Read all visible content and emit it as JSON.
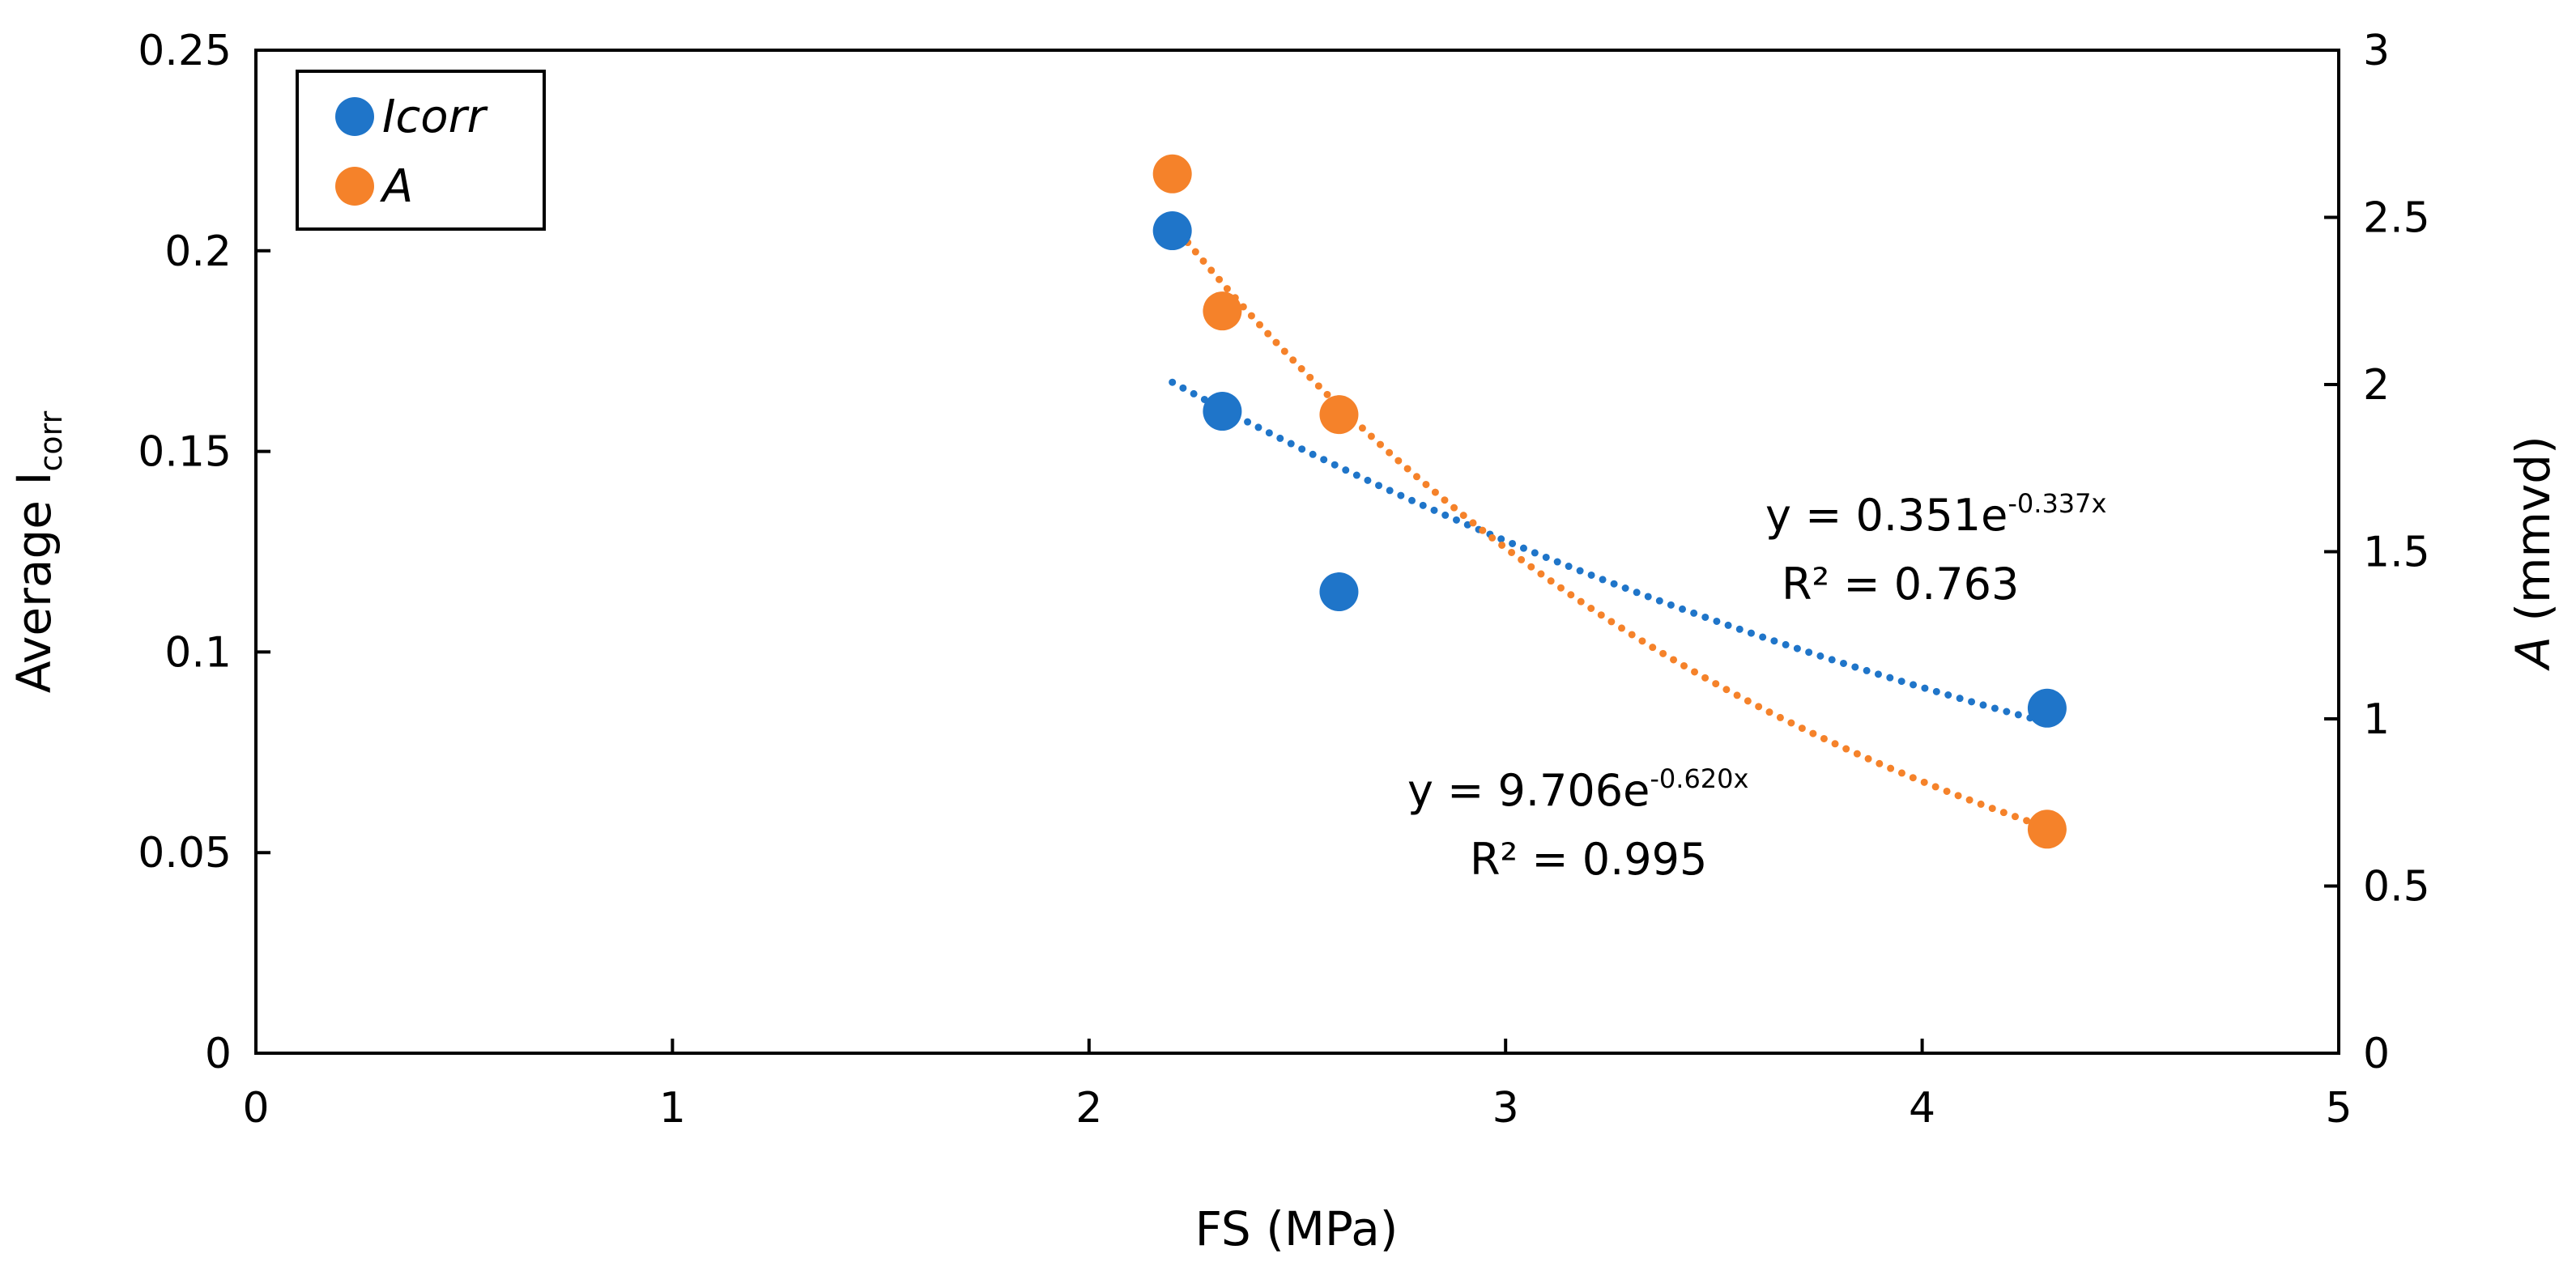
{
  "chart_data": {
    "type": "scatter",
    "title": "",
    "xlabel": "FS (MPa)",
    "ylabel": "Average I",
    "ylabel_sub": "corr",
    "y2label_italic": "A",
    "y2label_rest": " (mmvd)",
    "xlim": [
      0,
      5
    ],
    "ylim": [
      0,
      0.25
    ],
    "y2lim": [
      0,
      3
    ],
    "x_ticks": [
      0,
      1,
      2,
      3,
      4,
      5
    ],
    "x_tick_labels": [
      "0",
      "1",
      "2",
      "3",
      "4",
      "5"
    ],
    "y_ticks": [
      0,
      0.05,
      0.1,
      0.15,
      0.2,
      0.25
    ],
    "y_tick_labels": [
      "0",
      "0.05",
      "0.1",
      "0.15",
      "0.2",
      "0.25"
    ],
    "y2_ticks": [
      0,
      0.5,
      1,
      1.5,
      2,
      2.5,
      3
    ],
    "y2_tick_labels": [
      "0",
      "0.5",
      "1",
      "1.5",
      "2",
      "2.5",
      "3"
    ],
    "grid": false,
    "legend_position": "top-left",
    "series": [
      {
        "name": "Icorr",
        "axis": "left",
        "color": "#1f75c9",
        "x": [
          2.2,
          2.32,
          2.6,
          4.3
        ],
        "y": [
          0.205,
          0.16,
          0.115,
          0.086
        ],
        "trendline": {
          "type": "exponential",
          "a": 0.351,
          "b": -0.337,
          "x_range": [
            2.2,
            4.3
          ]
        },
        "equation": {
          "prefix": "y = 0.351e",
          "exponent": "-0.337x",
          "r2": "R² = 0.763"
        }
      },
      {
        "name": "A",
        "axis": "right",
        "color": "#f5822a",
        "x": [
          2.2,
          2.32,
          2.6,
          4.3
        ],
        "y": [
          2.63,
          2.22,
          1.91,
          0.67
        ],
        "trendline": {
          "type": "exponential",
          "a": 9.706,
          "b": -0.62,
          "x_range": [
            2.2,
            4.3
          ]
        },
        "equation": {
          "prefix": "y = 9.706e",
          "exponent": "-0.620x",
          "r2": "R² = 0.995"
        }
      }
    ]
  }
}
